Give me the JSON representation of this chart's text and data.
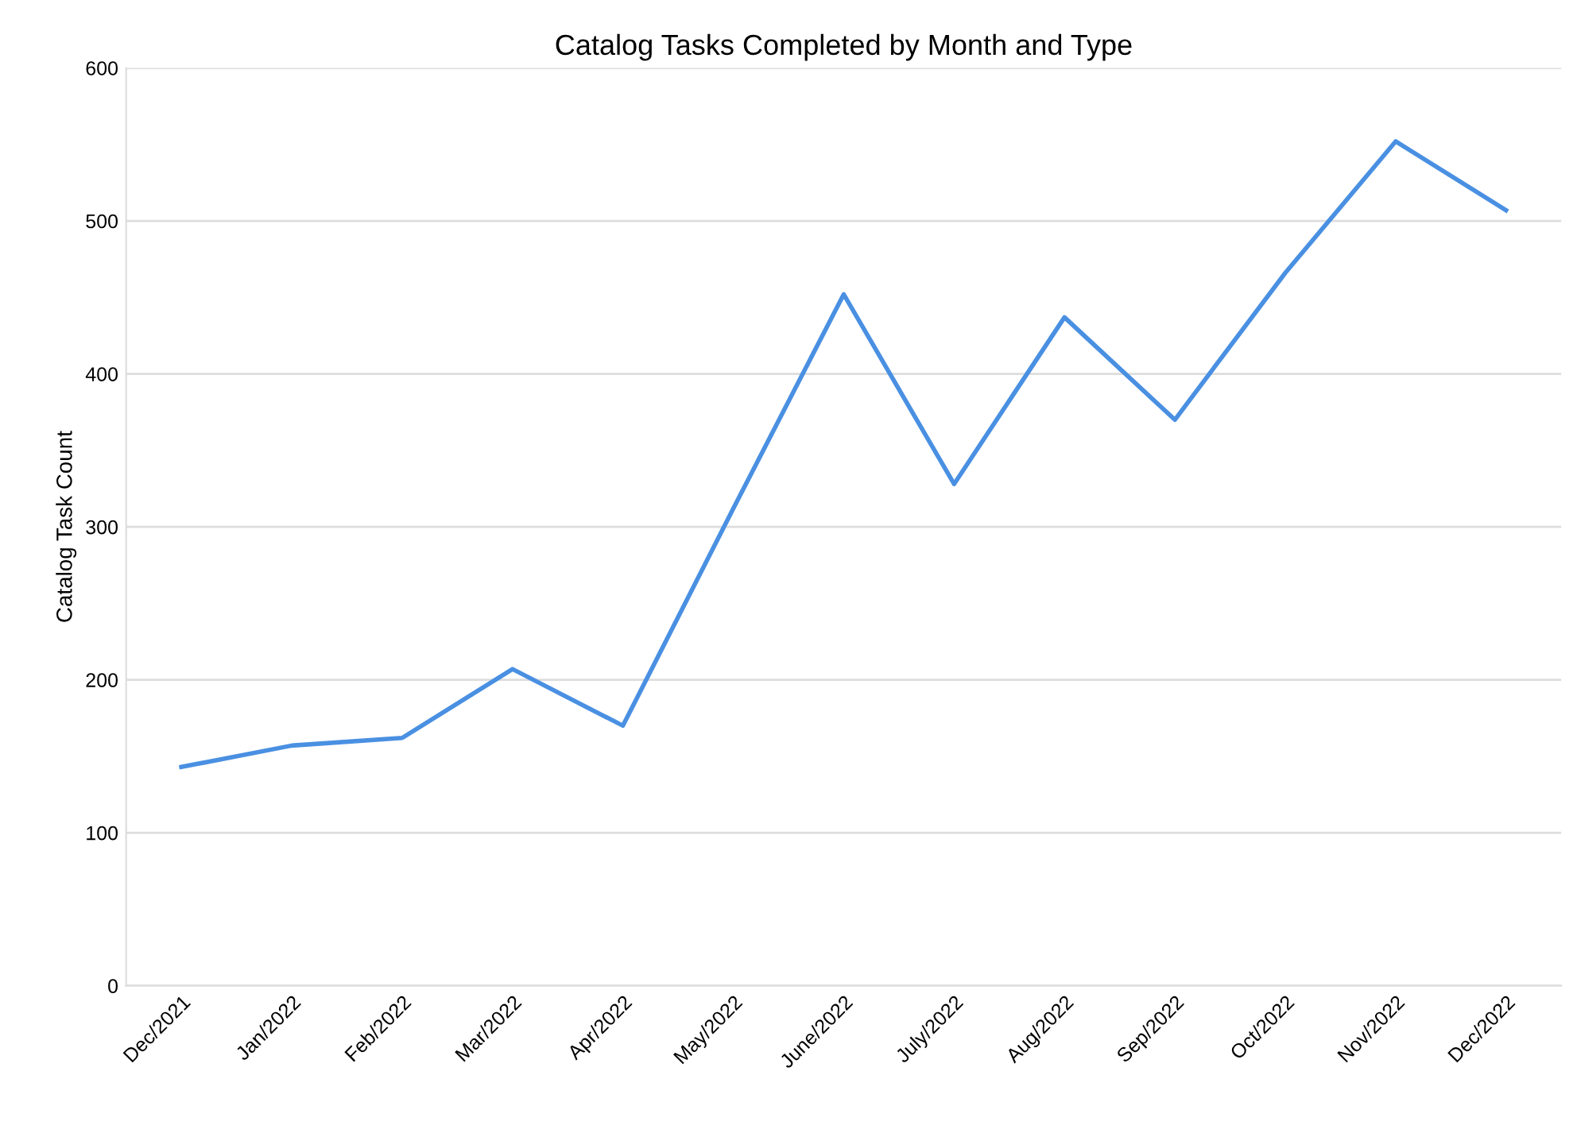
{
  "chart_data": {
    "type": "line",
    "title": "Catalog Tasks Completed by Month and Type",
    "ylabel": "Catalog Task Count",
    "categories": [
      "Dec/2021",
      "Jan/2022",
      "Feb/2022",
      "Mar/2022",
      "Apr/2022",
      "May/2022",
      "June/2022",
      "July/2022",
      "Aug/2022",
      "Sep/2022",
      "Oct/2022",
      "Nov/2022",
      "Dec/2022"
    ],
    "series": [
      {
        "color": "#4a90e2",
        "values": [
          143,
          157,
          162,
          207,
          170,
          312,
          452,
          328,
          437,
          370,
          466,
          552,
          507
        ]
      }
    ],
    "ylim": [
      0,
      600
    ],
    "yticks": [
      0,
      100,
      200,
      300,
      400,
      500,
      600
    ],
    "grid": "y",
    "marker": "none",
    "line_style": "solid"
  }
}
